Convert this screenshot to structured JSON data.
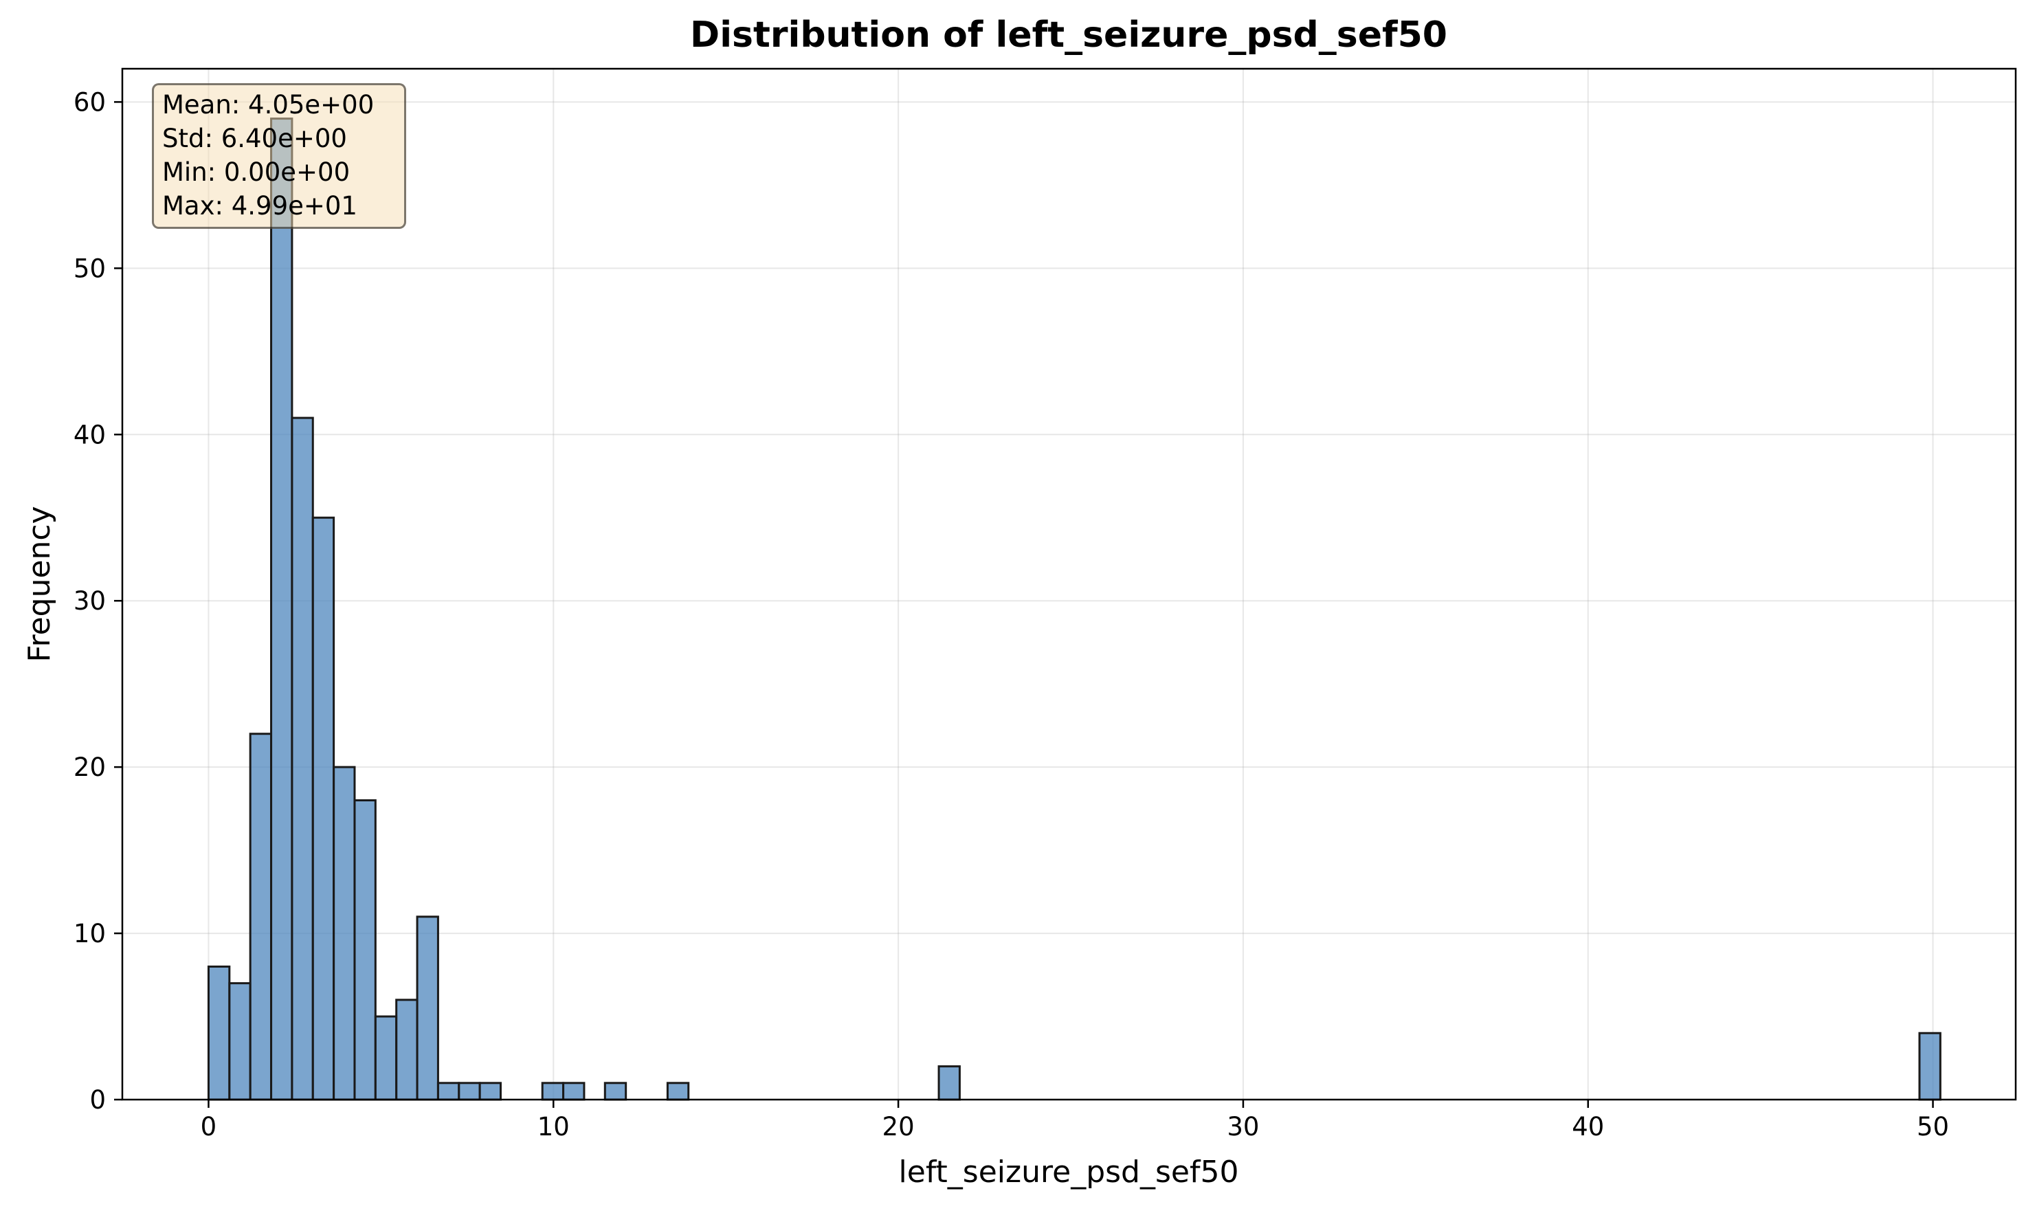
{
  "chart_data": {
    "type": "bar",
    "title": "Distribution of left_seizure_psd_sef50",
    "xlabel": "left_seizure_psd_sef50",
    "ylabel": "Frequency",
    "xlim": [
      -2.5,
      52.4
    ],
    "ylim": [
      0,
      62
    ],
    "xticks": [
      0,
      10,
      20,
      30,
      40,
      50
    ],
    "yticks": [
      0,
      10,
      20,
      30,
      40,
      50,
      60
    ],
    "grid": true,
    "bin_start": 0.0,
    "bin_width": 0.605,
    "values": [
      8,
      7,
      22,
      59,
      41,
      35,
      20,
      18,
      5,
      6,
      11,
      1,
      1,
      1,
      0,
      0,
      1,
      1,
      0,
      1,
      0,
      0,
      1,
      0,
      0,
      0,
      0,
      0,
      0,
      0,
      0,
      0,
      0,
      0,
      0,
      2,
      0,
      0,
      0,
      0,
      0,
      0,
      0,
      0,
      0,
      0,
      0,
      0,
      0,
      0,
      0,
      0,
      0,
      0,
      0,
      0,
      0,
      0,
      0,
      0,
      0,
      0,
      0,
      0,
      0,
      0,
      0,
      0,
      0,
      0,
      0,
      0,
      0,
      0,
      0,
      0,
      0,
      0,
      0,
      0,
      0,
      0,
      4
    ],
    "bar_color": "#4f87bd",
    "edge_color": "#1a1a1a",
    "annotation": [
      "Mean: 4.05e+00",
      "Std: 6.40e+00",
      "Min: 0.00e+00",
      "Max: 4.99e+01"
    ]
  }
}
